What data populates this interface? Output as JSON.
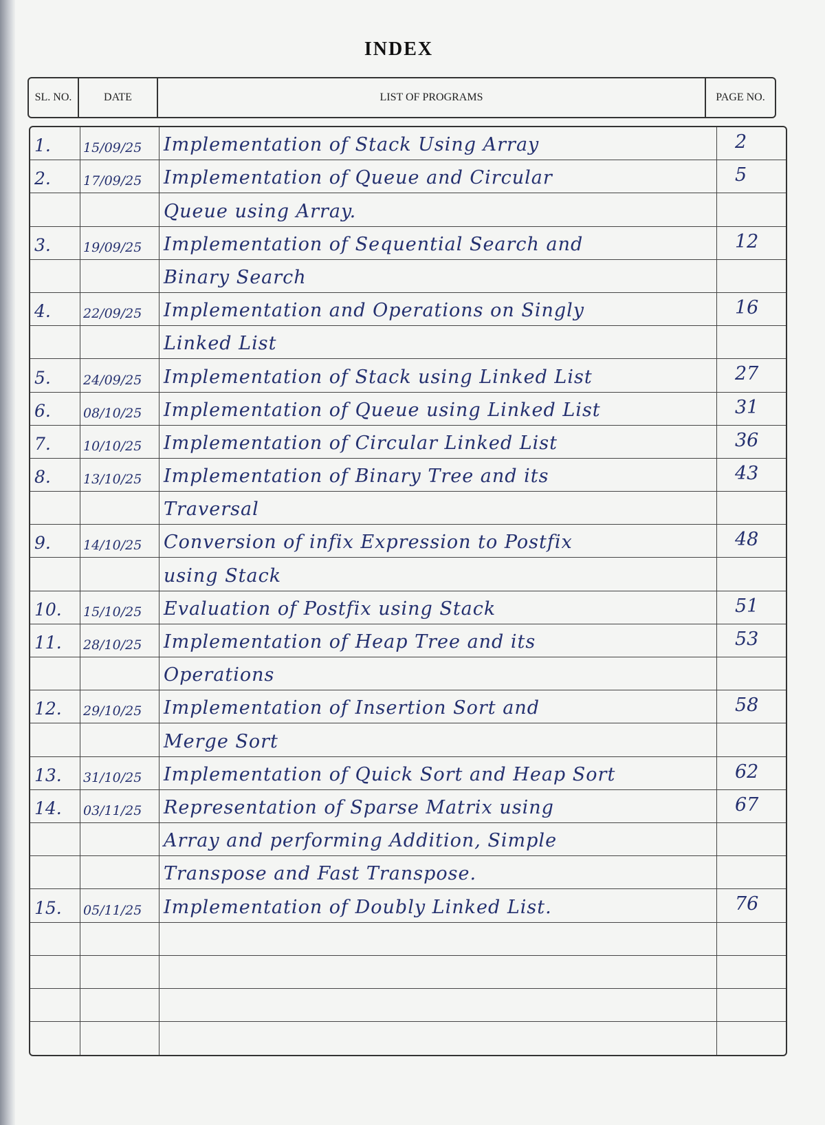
{
  "title": "INDEX",
  "headers": {
    "sl_no": "SL. NO.",
    "date": "DATE",
    "programs": "LIST OF PROGRAMS",
    "page_no": "PAGE NO."
  },
  "entries": [
    {
      "sl": "1.",
      "date": "15/09/25",
      "lines": [
        "Implementation of Stack Using Array"
      ],
      "page": "2"
    },
    {
      "sl": "2.",
      "date": "17/09/25",
      "lines": [
        "Implementation of Queue and Circular",
        "Queue using Array."
      ],
      "page": "5"
    },
    {
      "sl": "3.",
      "date": "19/09/25",
      "lines": [
        "Implementation of Sequential Search and",
        "Binary Search"
      ],
      "page": "12"
    },
    {
      "sl": "4.",
      "date": "22/09/25",
      "lines": [
        "Implementation and Operations on Singly",
        "Linked List"
      ],
      "page": "16"
    },
    {
      "sl": "5.",
      "date": "24/09/25",
      "lines": [
        "Implementation of Stack using Linked List"
      ],
      "page": "27"
    },
    {
      "sl": "6.",
      "date": "08/10/25",
      "lines": [
        "Implementation of Queue using Linked List"
      ],
      "page": "31"
    },
    {
      "sl": "7.",
      "date": "10/10/25",
      "lines": [
        "Implementation of Circular Linked List"
      ],
      "page": "36"
    },
    {
      "sl": "8.",
      "date": "13/10/25",
      "lines": [
        "Implementation of Binary Tree and its",
        "Traversal"
      ],
      "page": "43"
    },
    {
      "sl": "9.",
      "date": "14/10/25",
      "lines": [
        "Conversion of infix Expression to Postfix",
        "using Stack"
      ],
      "page": "48"
    },
    {
      "sl": "10.",
      "date": "15/10/25",
      "lines": [
        "Evaluation of Postfix using Stack"
      ],
      "page": "51"
    },
    {
      "sl": "11.",
      "date": "28/10/25",
      "lines": [
        "Implementation of Heap Tree and its",
        "Operations"
      ],
      "page": "53"
    },
    {
      "sl": "12.",
      "date": "29/10/25",
      "lines": [
        "Implementation of Insertion Sort and",
        "Merge Sort"
      ],
      "page": "58"
    },
    {
      "sl": "13.",
      "date": "31/10/25",
      "lines": [
        "Implementation of Quick Sort and Heap Sort"
      ],
      "page": "62"
    },
    {
      "sl": "14.",
      "date": "03/11/25",
      "lines": [
        "Representation of Sparse Matrix using",
        "Array and performing Addition, Simple",
        "Transpose and Fast Transpose."
      ],
      "page": "67"
    },
    {
      "sl": "15.",
      "date": "05/11/25",
      "lines": [
        "Implementation of Doubly Linked List."
      ],
      "page": "76"
    }
  ],
  "ink_color": "#24306f"
}
